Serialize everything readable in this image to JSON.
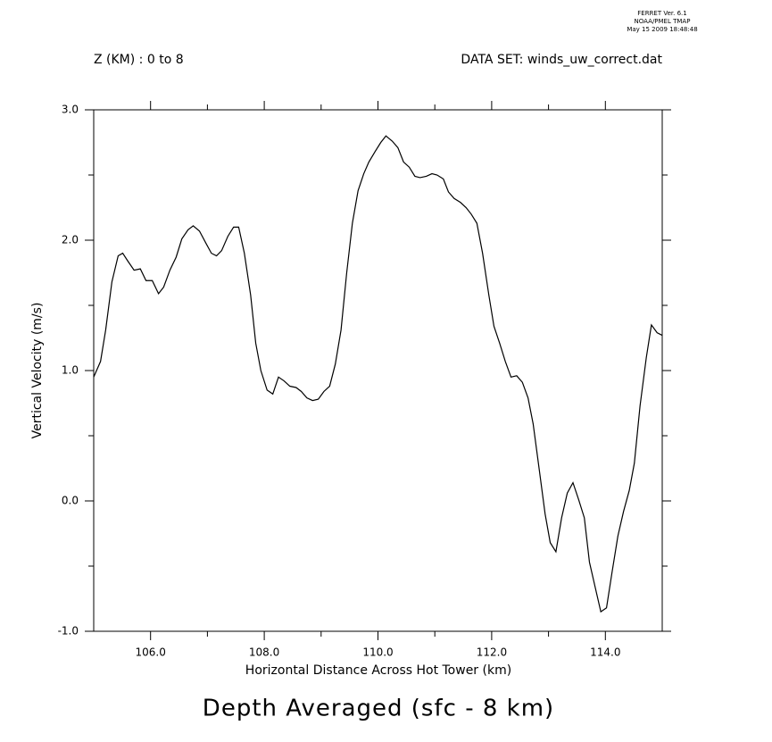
{
  "chart_data": {
    "type": "line",
    "title": "Depth Averaged (sfc - 8 km)",
    "header": [
      "FERRET Ver. 6.1",
      "NOAA/PMEL TMAP",
      "May 15 2009 18:48:48"
    ],
    "subtitle_left": "Z (KM) : 0 to 8",
    "subtitle_right": "DATA SET: winds_uw_correct.dat",
    "x_label": "Horizontal Distance Across Hot Tower (km)",
    "y_label": "Vertical Velocity (m/s)",
    "xlim": [
      105,
      115
    ],
    "ylim": [
      -1,
      3
    ],
    "xticks": [
      {
        "value": 106,
        "label": "106.0"
      },
      {
        "value": 108,
        "label": "108.0"
      },
      {
        "value": 110,
        "label": "110.0"
      },
      {
        "value": 112,
        "label": "112.0"
      },
      {
        "value": 114,
        "label": "114.0"
      }
    ],
    "xminorticks": [
      107,
      109,
      111,
      113
    ],
    "yticks": [
      {
        "value": 3,
        "label": "3.0"
      },
      {
        "value": 2,
        "label": "2.0"
      },
      {
        "value": 1,
        "label": "1.0"
      },
      {
        "value": 0,
        "label": "0.0"
      },
      {
        "value": -1,
        "label": "-1.0"
      }
    ],
    "yminorticks": [
      2.5,
      1.5,
      0.5,
      -0.5
    ],
    "color": "#000000",
    "x": [
      105.0,
      105.12,
      105.21,
      105.32,
      105.43,
      105.51,
      105.6,
      105.71,
      105.82,
      105.92,
      106.03,
      106.14,
      106.23,
      106.34,
      106.45,
      106.55,
      106.66,
      106.75,
      106.86,
      106.97,
      107.07,
      107.16,
      107.25,
      107.36,
      107.46,
      107.55,
      107.65,
      107.76,
      107.85,
      107.94,
      108.05,
      108.15,
      108.25,
      108.35,
      108.45,
      108.56,
      108.65,
      108.75,
      108.85,
      108.95,
      109.05,
      109.15,
      109.25,
      109.35,
      109.45,
      109.55,
      109.65,
      109.75,
      109.84,
      109.95,
      110.05,
      110.14,
      110.25,
      110.35,
      110.45,
      110.55,
      110.65,
      110.74,
      110.85,
      110.95,
      111.04,
      111.15,
      111.24,
      111.34,
      111.45,
      111.55,
      111.64,
      111.74,
      111.84,
      111.95,
      112.04,
      112.14,
      112.24,
      112.34,
      112.44,
      112.54,
      112.64,
      112.73,
      112.84,
      112.94,
      113.03,
      113.13,
      113.23,
      113.33,
      113.43,
      113.53,
      113.63,
      113.72,
      113.83,
      113.92,
      114.02,
      114.12,
      114.22,
      114.32,
      114.42,
      114.51,
      114.61,
      114.72,
      114.81,
      114.91,
      115.0
    ],
    "values": [
      0.95,
      1.07,
      1.31,
      1.68,
      1.88,
      1.9,
      1.84,
      1.77,
      1.78,
      1.69,
      1.69,
      1.59,
      1.64,
      1.77,
      1.87,
      2.01,
      2.08,
      2.11,
      2.07,
      1.98,
      1.9,
      1.88,
      1.92,
      2.03,
      2.1,
      2.1,
      1.9,
      1.58,
      1.21,
      1.0,
      0.85,
      0.82,
      0.95,
      0.92,
      0.88,
      0.87,
      0.84,
      0.79,
      0.77,
      0.78,
      0.84,
      0.88,
      1.05,
      1.31,
      1.75,
      2.13,
      2.38,
      2.51,
      2.6,
      2.68,
      2.75,
      2.8,
      2.76,
      2.71,
      2.6,
      2.56,
      2.49,
      2.48,
      2.49,
      2.51,
      2.5,
      2.47,
      2.37,
      2.32,
      2.29,
      2.25,
      2.2,
      2.13,
      1.9,
      1.58,
      1.34,
      1.21,
      1.07,
      0.95,
      0.96,
      0.91,
      0.79,
      0.59,
      0.23,
      -0.1,
      -0.32,
      -0.39,
      -0.13,
      0.06,
      0.14,
      0.01,
      -0.13,
      -0.47,
      -0.68,
      -0.85,
      -0.82,
      -0.54,
      -0.27,
      -0.08,
      0.08,
      0.29,
      0.73,
      1.1,
      1.35,
      1.29,
      1.27
    ]
  }
}
